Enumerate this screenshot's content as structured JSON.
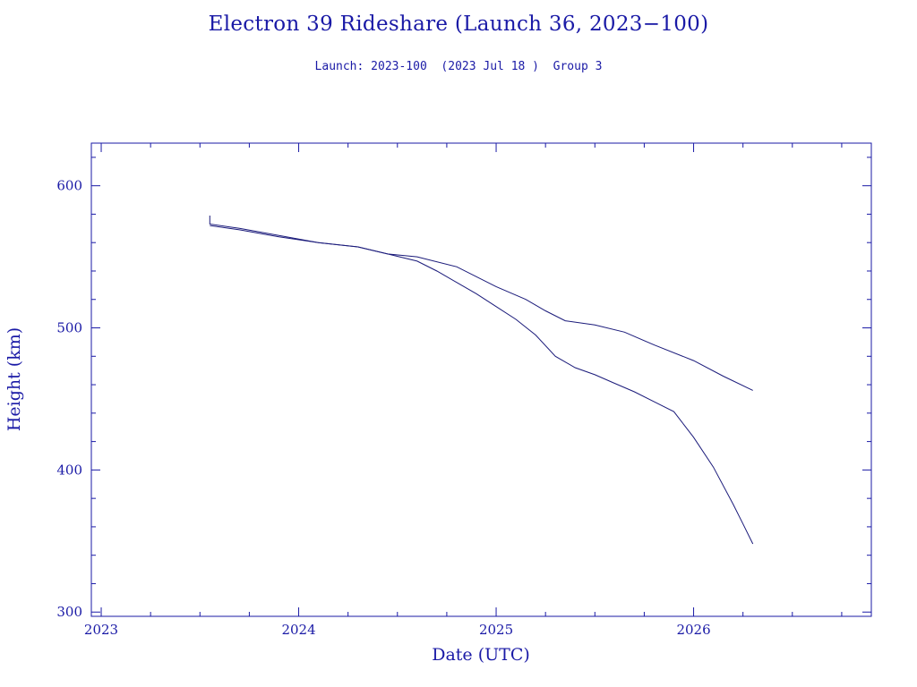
{
  "page": {
    "title": "Electron 39 Rideshare (Launch 36, 2023−100)",
    "subtitle": "Launch: 2023-100  (2023 Jul 18 )  Group 3"
  },
  "colors": {
    "ink": "#1a1aa6",
    "series": "#1a1a7a",
    "background": "#ffffff"
  },
  "chart_data": {
    "type": "line",
    "title": "Electron 39 Rideshare (Launch 36, 2023−100)",
    "subtitle": "Launch: 2023-100  (2023 Jul 18 )  Group 3",
    "xlabel": "Date (UTC)",
    "ylabel": "Height (km)",
    "xlim": [
      2022.95,
      2026.9
    ],
    "ylim": [
      297,
      630
    ],
    "x_ticks": [
      2023,
      2024,
      2025,
      2026
    ],
    "y_ticks": [
      300,
      400,
      500,
      600
    ],
    "grid": false,
    "series": [
      {
        "x": [
          2023.55,
          2023.55,
          2023.7,
          2023.9,
          2024.1,
          2024.3,
          2024.45,
          2024.6,
          2024.8,
          2025.0,
          2025.15,
          2025.25,
          2025.35,
          2025.5,
          2025.65,
          2025.8,
          2026.0,
          2026.15,
          2026.3
        ],
        "y": [
          579,
          573,
          570,
          565,
          560,
          557,
          552,
          550,
          543,
          529,
          520,
          512,
          505,
          502,
          497,
          488,
          477,
          466,
          456
        ]
      },
      {
        "x": [
          2023.55,
          2023.7,
          2023.9,
          2024.1,
          2024.3,
          2024.45,
          2024.6,
          2024.7,
          2024.8,
          2024.9,
          2025.0,
          2025.1,
          2025.2,
          2025.3,
          2025.4,
          2025.5,
          2025.6,
          2025.7,
          2025.8,
          2025.9,
          2026.0,
          2026.1,
          2026.2,
          2026.25,
          2026.3
        ],
        "y": [
          572,
          569,
          564,
          560,
          557,
          552,
          547,
          540,
          532,
          524,
          515,
          506,
          495,
          480,
          472,
          467,
          461,
          455,
          448,
          441,
          423,
          402,
          376,
          362,
          348
        ]
      }
    ]
  }
}
